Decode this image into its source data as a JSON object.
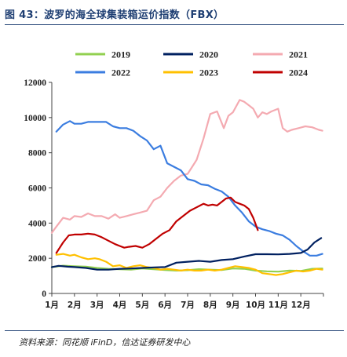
{
  "title": "图 43：波罗的海全球集装箱运价指数（FBX）",
  "source": "资料来源：同花顺 iFinD，信达证券研发中心",
  "chart_data": {
    "type": "line",
    "title": "图 43：波罗的海全球集装箱运价指数（FBX）",
    "xlabel": "",
    "ylabel": "",
    "ylim": [
      0,
      12000
    ],
    "yticks": [
      "0",
      "2000",
      "4000",
      "6000",
      "8000",
      "10000",
      "12000"
    ],
    "xlim": [
      1,
      13
    ],
    "xticks": [
      "1月",
      "2月",
      "3月",
      "4月",
      "5月",
      "6月",
      "7月",
      "8月",
      "9月",
      "10月",
      "11月",
      "12月"
    ],
    "grid": false,
    "legend_position": "top",
    "series": [
      {
        "name": "2019",
        "color": "#92d050",
        "x": [
          1.0,
          1.5,
          2.0,
          2.5,
          3.0,
          3.5,
          4.0,
          4.5,
          5.0,
          5.5,
          6.0,
          6.5,
          7.0,
          7.5,
          8.0,
          8.5,
          9.0,
          9.5,
          10.0,
          10.5,
          11.0,
          11.5,
          12.0,
          12.5,
          12.95
        ],
        "values": [
          1500,
          1580,
          1550,
          1520,
          1450,
          1400,
          1380,
          1350,
          1420,
          1380,
          1330,
          1300,
          1320,
          1380,
          1350,
          1330,
          1420,
          1400,
          1300,
          1260,
          1240,
          1300,
          1280,
          1400,
          1420
        ]
      },
      {
        "name": "2020",
        "color": "#002060",
        "x": [
          1.0,
          1.3,
          1.7,
          2.0,
          2.5,
          3.0,
          3.5,
          4.0,
          4.5,
          5.0,
          5.5,
          6.0,
          6.5,
          7.0,
          7.5,
          8.0,
          8.5,
          9.0,
          9.5,
          10.0,
          10.5,
          11.0,
          11.5,
          12.0,
          12.3,
          12.6,
          12.9
        ],
        "values": [
          1500,
          1570,
          1520,
          1500,
          1450,
          1350,
          1350,
          1400,
          1420,
          1450,
          1480,
          1500,
          1750,
          1800,
          1850,
          1800,
          1900,
          1950,
          2100,
          2230,
          2230,
          2220,
          2250,
          2300,
          2500,
          2900,
          3150
        ]
      },
      {
        "name": "2021",
        "color": "#f4aab1",
        "x": [
          1.0,
          1.2,
          1.5,
          1.8,
          2.0,
          2.3,
          2.6,
          2.9,
          3.2,
          3.5,
          3.8,
          4.0,
          4.3,
          4.6,
          4.9,
          5.2,
          5.5,
          5.8,
          6.1,
          6.4,
          6.7,
          7.0,
          7.2,
          7.4,
          7.7,
          8.0,
          8.3,
          8.6,
          8.8,
          9.0,
          9.3,
          9.5,
          9.7,
          9.9,
          10.1,
          10.3,
          10.5,
          10.7,
          11.0,
          11.2,
          11.4,
          11.6,
          11.9,
          12.2,
          12.5,
          12.8,
          12.95
        ],
        "values": [
          3450,
          3800,
          4300,
          4200,
          4400,
          4350,
          4550,
          4400,
          4400,
          4250,
          4500,
          4300,
          4400,
          4500,
          4600,
          4700,
          5300,
          5500,
          6000,
          6400,
          6700,
          6800,
          7200,
          7600,
          8800,
          10200,
          10350,
          9400,
          10100,
          10300,
          11000,
          10900,
          10700,
          10500,
          10000,
          10300,
          10200,
          10350,
          10500,
          9400,
          9200,
          9300,
          9400,
          9500,
          9450,
          9300,
          9250
        ]
      },
      {
        "name": "2022",
        "color": "#3b7de0",
        "x": [
          1.2,
          1.5,
          1.8,
          2.0,
          2.3,
          2.6,
          2.9,
          3.1,
          3.4,
          3.7,
          4.0,
          4.3,
          4.6,
          4.9,
          5.2,
          5.5,
          5.8,
          6.1,
          6.4,
          6.7,
          7.0,
          7.3,
          7.6,
          7.9,
          8.2,
          8.5,
          8.8,
          9.1,
          9.4,
          9.7,
          10.0,
          10.3,
          10.6,
          10.9,
          11.2,
          11.5,
          11.8,
          12.1,
          12.4,
          12.7,
          12.95
        ],
        "values": [
          9200,
          9600,
          9800,
          9650,
          9650,
          9750,
          9750,
          9750,
          9750,
          9500,
          9400,
          9400,
          9250,
          8950,
          8700,
          8200,
          8400,
          7400,
          7200,
          7000,
          6500,
          6400,
          6200,
          6150,
          5950,
          5800,
          5500,
          5000,
          4600,
          4100,
          3800,
          3650,
          3550,
          3400,
          3300,
          3050,
          2700,
          2400,
          2150,
          2150,
          2250
        ]
      },
      {
        "name": "2023",
        "color": "#ffc000",
        "x": [
          1.2,
          1.5,
          1.8,
          2.0,
          2.3,
          2.6,
          2.9,
          3.1,
          3.4,
          3.7,
          4.0,
          4.3,
          4.6,
          4.9,
          5.2,
          5.5,
          5.8,
          6.1,
          6.4,
          6.7,
          7.0,
          7.3,
          7.6,
          7.9,
          8.2,
          8.5,
          8.8,
          9.1,
          9.4,
          9.7,
          10.0,
          10.3,
          10.6,
          10.9,
          11.2,
          11.5,
          11.8,
          12.1,
          12.4,
          12.7,
          12.95
        ],
        "values": [
          2200,
          2250,
          2150,
          2200,
          2050,
          1950,
          2000,
          1950,
          1800,
          1550,
          1600,
          1450,
          1550,
          1600,
          1500,
          1450,
          1350,
          1400,
          1350,
          1300,
          1350,
          1300,
          1300,
          1350,
          1300,
          1350,
          1450,
          1550,
          1500,
          1450,
          1350,
          1150,
          1100,
          1050,
          1100,
          1200,
          1300,
          1250,
          1300,
          1400,
          1350
        ]
      },
      {
        "name": "2024",
        "color": "#c00000",
        "x": [
          1.2,
          1.35,
          1.5,
          1.75,
          2.0,
          2.3,
          2.6,
          2.9,
          3.2,
          3.5,
          3.8,
          4.0,
          4.2,
          4.4,
          4.7,
          5.0,
          5.3,
          5.6,
          5.9,
          6.2,
          6.5,
          6.8,
          7.1,
          7.4,
          7.7,
          7.9,
          8.1,
          8.3,
          8.5,
          8.7,
          8.9,
          9.1,
          9.3,
          9.5,
          9.7,
          9.9,
          10.1
        ],
        "values": [
          2300,
          2600,
          2900,
          3300,
          3350,
          3350,
          3400,
          3350,
          3200,
          3000,
          2800,
          2700,
          2600,
          2650,
          2700,
          2600,
          2800,
          3100,
          3400,
          3600,
          4100,
          4400,
          4700,
          4900,
          5100,
          5000,
          5050,
          5000,
          5200,
          5400,
          5450,
          5200,
          5100,
          5000,
          4800,
          4300,
          3600
        ]
      }
    ]
  }
}
